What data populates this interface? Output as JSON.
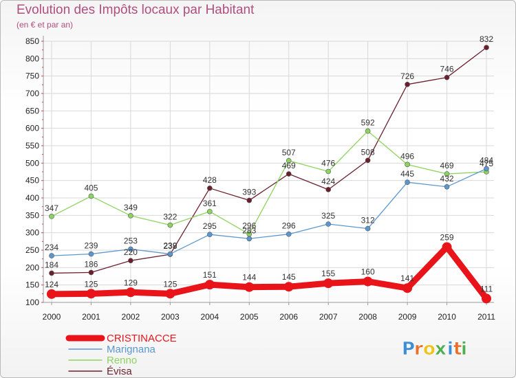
{
  "header": {
    "title": "Evolution des Impôts locaux par Habitant",
    "subtitle": "(en € et par an)"
  },
  "logo": {
    "letters": [
      "P",
      "r",
      "o",
      "x",
      "i",
      "t",
      "i"
    ],
    "colors": [
      "#3a8fd8",
      "#e8702a",
      "#f2c21c",
      "#4caf50",
      "#3a8fd8",
      "#e8702a",
      "#4caf50"
    ]
  },
  "chart_data": {
    "type": "line",
    "title": "Evolution des Impôts locaux par Habitant",
    "subtitle": "(en € et par an)",
    "x": [
      "2000",
      "2001",
      "2002",
      "2003",
      "2004",
      "2005",
      "2006",
      "2007",
      "2008",
      "2009",
      "2010",
      "2011"
    ],
    "ylim": [
      100,
      850
    ],
    "yticks": [
      100,
      150,
      200,
      250,
      300,
      350,
      400,
      450,
      500,
      550,
      600,
      650,
      700,
      750,
      800,
      850
    ],
    "grid": true,
    "legend_position": "bottom-left",
    "series": [
      {
        "name": "CRISTINACCE",
        "color": "#e8141a",
        "values": [
          124,
          125,
          129,
          125,
          151,
          144,
          145,
          155,
          160,
          141,
          259,
          111
        ]
      },
      {
        "name": "Marignana",
        "color": "#5b97cf",
        "values": [
          234,
          239,
          253,
          239,
          295,
          283,
          296,
          325,
          312,
          445,
          432,
          484
        ]
      },
      {
        "name": "Renno",
        "color": "#8dd35f",
        "values": [
          347,
          405,
          349,
          322,
          361,
          296,
          507,
          476,
          592,
          496,
          469,
          475
        ]
      },
      {
        "name": "Évisa",
        "color": "#6b1f2c",
        "values": [
          184,
          186,
          220,
          238,
          428,
          393,
          469,
          424,
          508,
          726,
          746,
          832
        ]
      }
    ]
  }
}
